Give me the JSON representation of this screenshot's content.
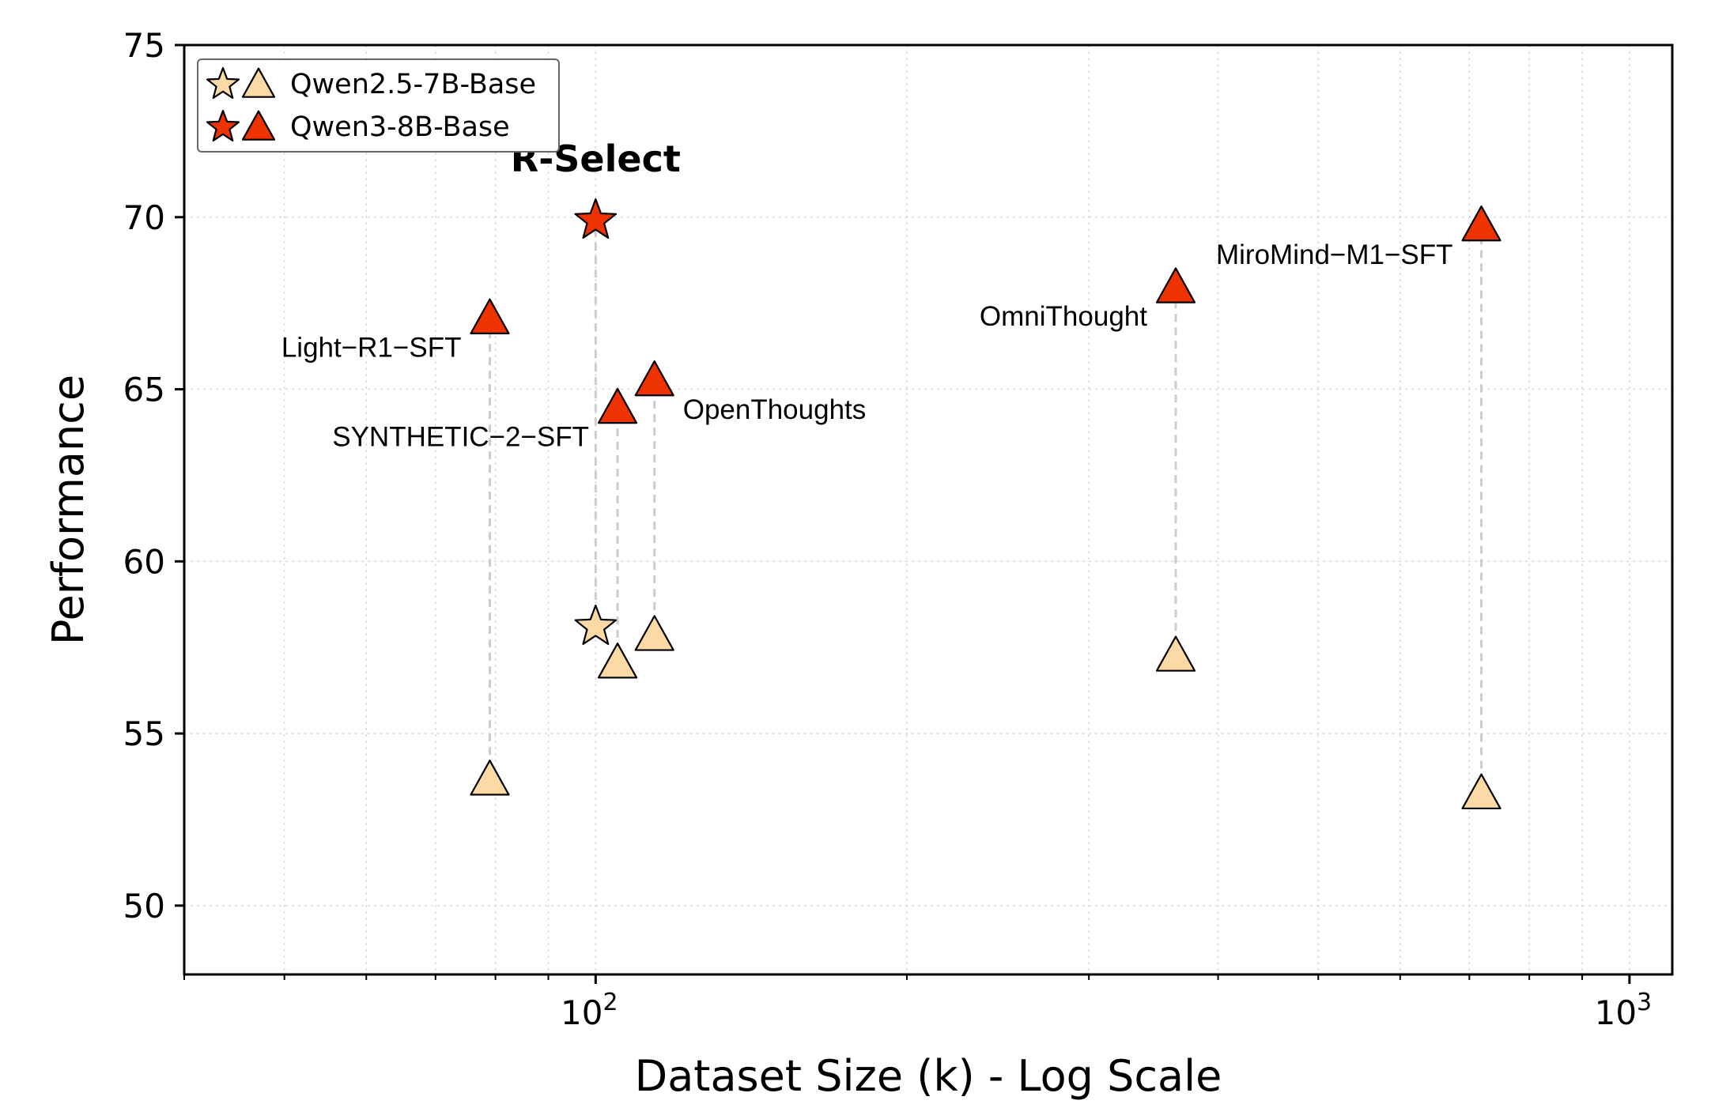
{
  "chart_data": {
    "type": "scatter",
    "xlabel": "Dataset Size (k) - Log Scale",
    "ylabel": "Performance",
    "xscale": "log",
    "xlim": [
      40,
      1100
    ],
    "ylim": [
      48,
      75
    ],
    "yticks": [
      50,
      55,
      60,
      65,
      70,
      75
    ],
    "xticks": [
      {
        "value": 100,
        "base": "10",
        "exp": "2"
      },
      {
        "value": 1000,
        "base": "10",
        "exp": "3"
      }
    ],
    "grid": true,
    "legend_position": "top-left",
    "series": [
      {
        "name": "Qwen2.5-7B-Base",
        "color": "#fdd9a6"
      },
      {
        "name": "Qwen3-8B-Base",
        "color": "#ee3300"
      }
    ],
    "points": [
      {
        "label": "R-Select",
        "highlight": true,
        "x": 100,
        "qwen25": 58.1,
        "qwen3": 69.9,
        "marker": "star"
      },
      {
        "label": "Light−R1−SFT",
        "x": 79,
        "qwen25": 53.6,
        "qwen3": 67.0,
        "marker": "triangle"
      },
      {
        "label": "SYNTHETIC−2−SFT",
        "x": 105,
        "qwen25": 57.0,
        "qwen3": 64.4,
        "marker": "triangle"
      },
      {
        "label": "OpenThoughts",
        "x": 114,
        "qwen25": 57.8,
        "qwen3": 65.2,
        "marker": "triangle"
      },
      {
        "label": "OmniThought",
        "x": 364,
        "qwen25": 57.2,
        "qwen3": 67.9,
        "marker": "triangle"
      },
      {
        "label": "MiroMind−M1−SFT",
        "x": 719,
        "qwen25": 53.2,
        "qwen3": 69.7,
        "marker": "triangle"
      }
    ]
  }
}
